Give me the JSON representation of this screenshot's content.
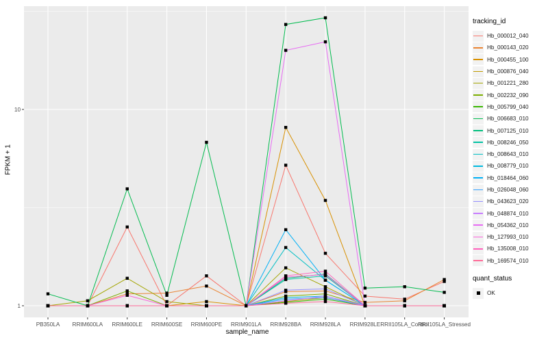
{
  "chart_data": {
    "type": "line",
    "title": "",
    "xlabel": "sample_name",
    "ylabel": "FPKM + 1",
    "y_scale": "log10",
    "y_ticks": [
      1,
      10
    ],
    "y_minor_ticks": [
      3.162,
      31.62
    ],
    "ylim": [
      0.87,
      34
    ],
    "grid": true,
    "legend_position": "right",
    "legend_title": "tracking_id",
    "legend2_title": "quant_status",
    "legend2_items": [
      "OK"
    ],
    "point_shape": "square",
    "categories": [
      "PB350LA",
      "RRIM600LA",
      "RRIM600LE",
      "RRIM600SE",
      "RRIM600PE",
      "RRIM901LA",
      "RRIM928BA",
      "RRIM928LA",
      "RRIM928LE",
      "RRII105LA_Control",
      "RRII105LA_Stressed"
    ],
    "series": [
      {
        "name": "Hb_000012_040",
        "color": "#F8766D",
        "values": [
          1.0,
          1.0,
          2.52,
          1.0,
          1.42,
          1.0,
          5.2,
          1.85,
          1.12,
          1.08,
          1.33
        ]
      },
      {
        "name": "Hb_000143_020",
        "color": "#EA8331",
        "values": [
          1.0,
          1.0,
          1.15,
          1.16,
          1.26,
          1.0,
          1.18,
          1.19,
          1.04,
          1.06,
          1.36
        ]
      },
      {
        "name": "Hb_000455_100",
        "color": "#D89000",
        "values": [
          1.0,
          1.0,
          1.0,
          1.0,
          1.05,
          1.0,
          8.1,
          3.44,
          1.0,
          1.0,
          1.0
        ]
      },
      {
        "name": "Hb_000876_040",
        "color": "#C09B00",
        "values": [
          1.0,
          1.0,
          1.0,
          1.0,
          1.0,
          1.0,
          1.05,
          1.1,
          1.0,
          1.0,
          1.0
        ]
      },
      {
        "name": "Hb_001221_280",
        "color": "#A3A500",
        "values": [
          1.0,
          1.06,
          1.38,
          1.05,
          1.0,
          1.0,
          1.56,
          1.25,
          1.0,
          1.0,
          1.0
        ]
      },
      {
        "name": "Hb_002232_090",
        "color": "#7CAE00",
        "values": [
          1.0,
          1.0,
          1.19,
          1.0,
          1.0,
          1.0,
          1.12,
          1.15,
          1.0,
          1.0,
          1.0
        ]
      },
      {
        "name": "Hb_005799_040",
        "color": "#39B600",
        "values": [
          1.0,
          1.0,
          1.0,
          1.0,
          1.0,
          1.0,
          1.04,
          1.08,
          1.0,
          1.0,
          1.0
        ]
      },
      {
        "name": "Hb_006683_010",
        "color": "#00BB4E",
        "values": [
          1.15,
          1.0,
          3.94,
          1.13,
          6.8,
          1.0,
          27.1,
          29.3,
          1.23,
          1.25,
          1.17
        ]
      },
      {
        "name": "Hb_007125_010",
        "color": "#00BF7D",
        "values": [
          1.0,
          1.0,
          1.0,
          1.0,
          1.0,
          1.0,
          1.38,
          1.45,
          1.0,
          1.0,
          1.0
        ]
      },
      {
        "name": "Hb_008246_050",
        "color": "#00C1A3",
        "values": [
          1.0,
          1.0,
          1.0,
          1.0,
          1.0,
          1.0,
          1.36,
          1.42,
          1.0,
          1.0,
          1.0
        ]
      },
      {
        "name": "Hb_008643_010",
        "color": "#00BFC4",
        "values": [
          1.0,
          1.0,
          1.0,
          1.0,
          1.0,
          1.0,
          1.98,
          1.35,
          1.0,
          1.0,
          1.0
        ]
      },
      {
        "name": "Hb_008779_010",
        "color": "#00BAE0",
        "values": [
          1.0,
          1.0,
          1.0,
          1.0,
          1.0,
          1.0,
          1.1,
          1.12,
          1.0,
          1.0,
          1.0
        ]
      },
      {
        "name": "Hb_018464_060",
        "color": "#00B0F6",
        "values": [
          1.0,
          1.0,
          1.0,
          1.0,
          1.0,
          1.0,
          2.44,
          1.35,
          1.0,
          1.0,
          1.0
        ]
      },
      {
        "name": "Hb_026048_060",
        "color": "#35A2FF",
        "values": [
          1.0,
          1.0,
          1.0,
          1.0,
          1.0,
          1.0,
          1.08,
          1.1,
          1.0,
          1.0,
          1.0
        ]
      },
      {
        "name": "Hb_043623_020",
        "color": "#9590FF",
        "values": [
          1.0,
          1.0,
          1.0,
          1.0,
          1.0,
          1.0,
          1.2,
          1.22,
          1.0,
          1.0,
          1.0
        ]
      },
      {
        "name": "Hb_048874_010",
        "color": "#C77CFF",
        "values": [
          1.0,
          1.0,
          1.0,
          1.0,
          1.0,
          1.0,
          1.06,
          1.12,
          1.0,
          1.0,
          1.0
        ]
      },
      {
        "name": "Hb_054362_010",
        "color": "#E76BF3",
        "values": [
          1.0,
          1.0,
          1.0,
          1.0,
          1.0,
          1.0,
          20.0,
          22.1,
          1.0,
          1.0,
          1.0
        ]
      },
      {
        "name": "Hb_127993_010",
        "color": "#FA62DB",
        "values": [
          1.0,
          1.0,
          1.13,
          1.0,
          1.0,
          1.0,
          1.4,
          1.44,
          1.0,
          1.0,
          1.0
        ]
      },
      {
        "name": "Hb_135008_010",
        "color": "#FF62BC",
        "values": [
          1.0,
          1.0,
          1.0,
          1.0,
          1.0,
          1.0,
          1.42,
          1.5,
          1.0,
          1.0,
          1.0
        ]
      },
      {
        "name": "Hb_169574_010",
        "color": "#FF6A98",
        "values": [
          1.0,
          1.0,
          1.0,
          1.0,
          1.0,
          1.0,
          1.03,
          1.05,
          1.0,
          1.0,
          1.0
        ]
      }
    ],
    "style": {
      "panel_bg": "#EBEBEB",
      "grid_color": "#FFFFFF",
      "point_color": "#000000",
      "tick_label_color": "#4D4D4D",
      "tick_mark_color": "#333333",
      "legend_key_bg": "#F2F2F2"
    }
  }
}
